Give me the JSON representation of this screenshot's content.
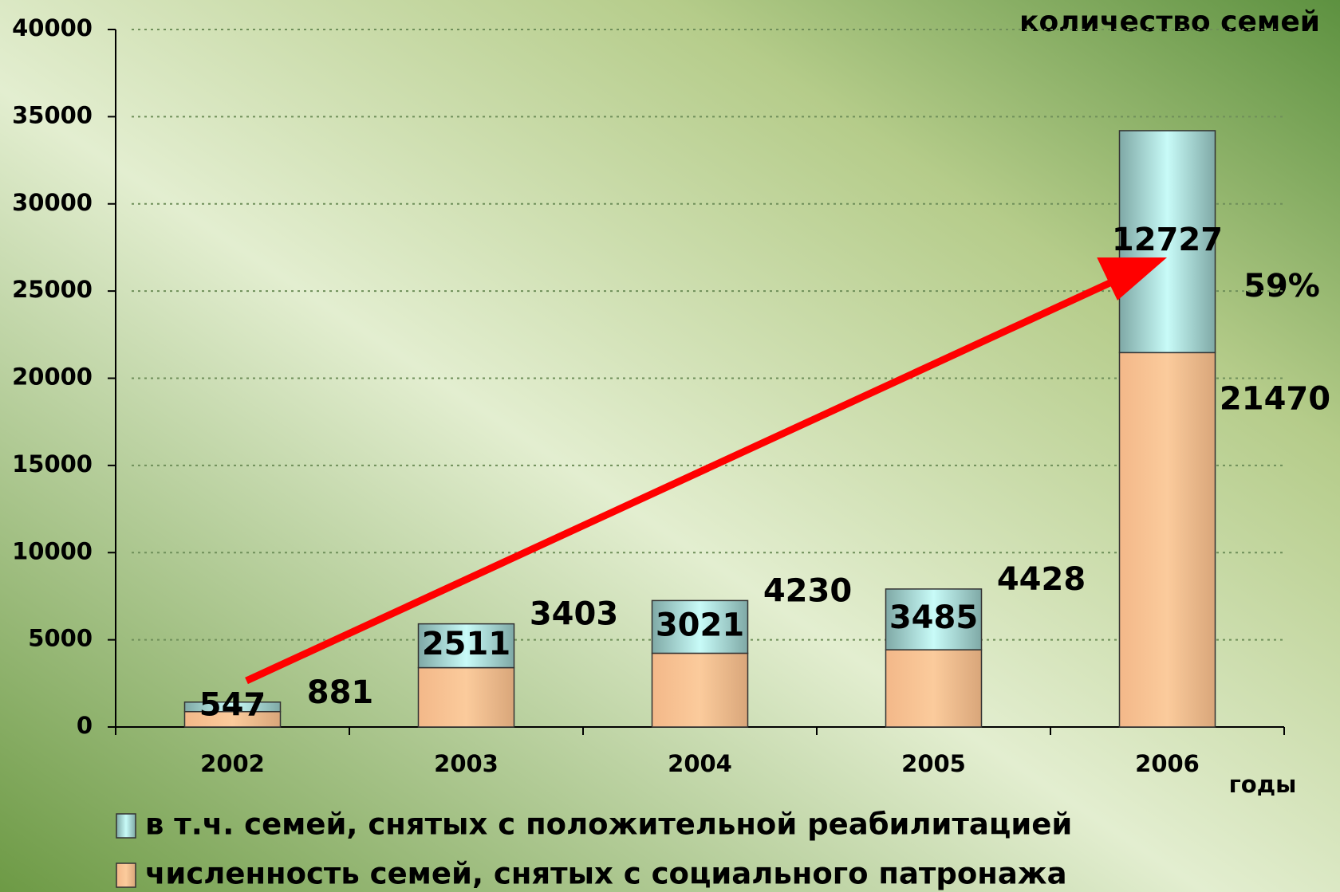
{
  "chart_data": {
    "type": "stacked_bar",
    "y_label": "количество семей",
    "x_label": "годы",
    "annotation": "59%",
    "categories": [
      "2002",
      "2003",
      "2004",
      "2005",
      "2006"
    ],
    "series": [
      {
        "name": "численность семей, снятых с социального патронажа",
        "color": "#f9c897",
        "values": [
          881,
          3403,
          4230,
          4428,
          21470
        ]
      },
      {
        "name": "в т.ч. семей, снятых с положительной реабилитацией",
        "color": "#bff4f2",
        "values": [
          547,
          2511,
          3021,
          3485,
          12727
        ]
      }
    ],
    "ylim": [
      0,
      40000
    ],
    "yticks": [
      0,
      5000,
      10000,
      15000,
      20000,
      25000,
      30000,
      35000,
      40000
    ],
    "grid": true
  }
}
